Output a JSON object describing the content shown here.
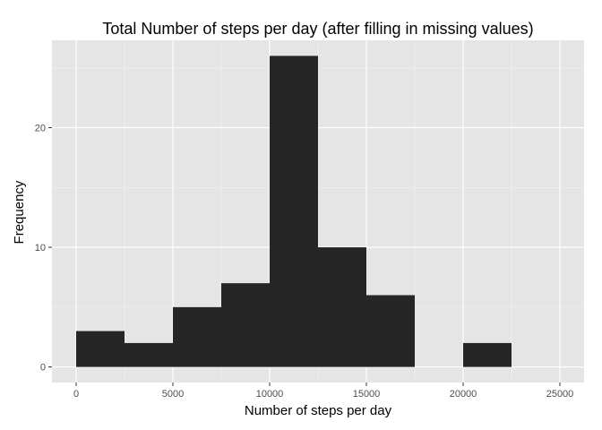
{
  "chart_data": {
    "type": "bar",
    "title": "Total Number of steps per day (after filling in missing values)",
    "xlabel": "Number of steps per day",
    "ylabel": "Frequency",
    "bin_width": 2500,
    "bins": [
      {
        "x_start": 0,
        "x_end": 2500,
        "count": 3
      },
      {
        "x_start": 2500,
        "x_end": 5000,
        "count": 2
      },
      {
        "x_start": 5000,
        "x_end": 7500,
        "count": 5
      },
      {
        "x_start": 7500,
        "x_end": 10000,
        "count": 7
      },
      {
        "x_start": 10000,
        "x_end": 12500,
        "count": 26
      },
      {
        "x_start": 12500,
        "x_end": 15000,
        "count": 10
      },
      {
        "x_start": 15000,
        "x_end": 17500,
        "count": 6
      },
      {
        "x_start": 17500,
        "x_end": 20000,
        "count": 0
      },
      {
        "x_start": 20000,
        "x_end": 22500,
        "count": 2
      }
    ],
    "xlim": [
      -1250,
      26250
    ],
    "ylim": [
      -1.3,
      27.3
    ],
    "x_ticks": [
      0,
      5000,
      10000,
      15000,
      20000,
      25000
    ],
    "x_tick_labels": [
      "0",
      "5000",
      "10000",
      "15000",
      "20000",
      "25000"
    ],
    "y_ticks": [
      0,
      10,
      20
    ],
    "y_tick_labels": [
      "0",
      "10",
      "20"
    ],
    "grid": true,
    "colors": {
      "panel_background": "#e5e5e5",
      "grid_major": "#ffffff",
      "grid_minor": "#f2f2f2",
      "bar_fill": "#262626",
      "tick_mark": "#333333"
    }
  }
}
